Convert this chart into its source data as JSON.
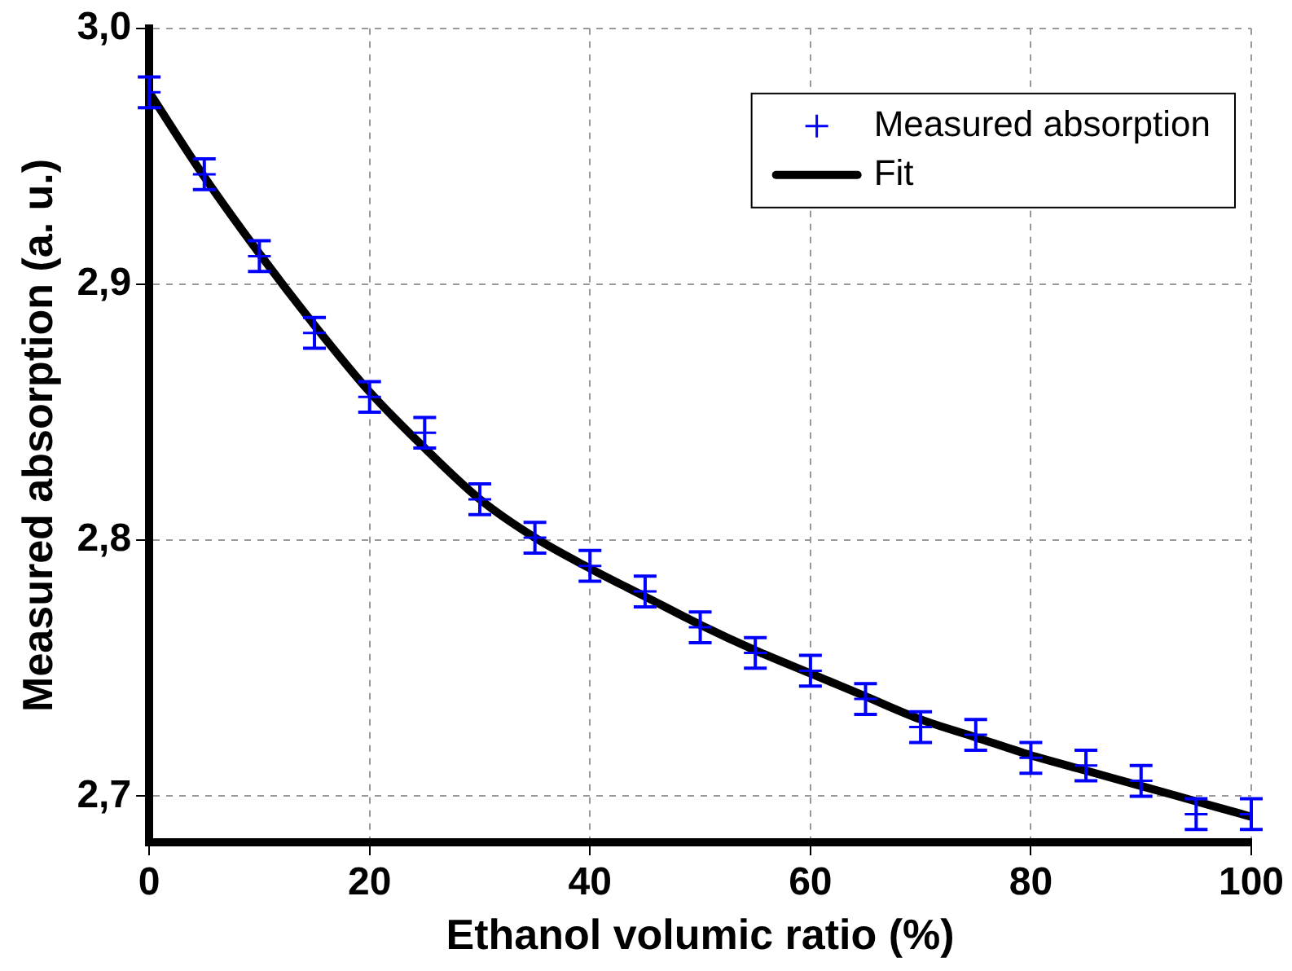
{
  "chart_data": {
    "type": "scatter",
    "xlabel": "Ethanol volumic ratio (%)",
    "ylabel": "Measured absorption (a. u.)",
    "xlim": [
      0,
      100
    ],
    "xticks": [
      0,
      20,
      40,
      60,
      80,
      100
    ],
    "ylim": [
      2.682,
      3.0
    ],
    "yticks": [
      {
        "value": 2.7,
        "label": "2,7"
      },
      {
        "value": 2.8,
        "label": "2,8"
      },
      {
        "value": 2.9,
        "label": "2,9"
      },
      {
        "value": 3.0,
        "label": "3,0"
      }
    ],
    "grid": true,
    "legend": "top right",
    "series": [
      {
        "name": "Measured absorption",
        "color": "#0000ff",
        "marker": "cross",
        "x": [
          0,
          5,
          10,
          15,
          20,
          25,
          30,
          35,
          40,
          45,
          50,
          55,
          60,
          65,
          70,
          75,
          80,
          85,
          90,
          95,
          100
        ],
        "values": [
          2.975,
          2.943,
          2.911,
          2.881,
          2.856,
          2.842,
          2.816,
          2.801,
          2.79,
          2.78,
          2.766,
          2.756,
          2.749,
          2.738,
          2.727,
          2.724,
          2.715,
          2.712,
          2.706,
          2.693,
          2.693
        ],
        "errors": [
          0.006,
          0.006,
          0.006,
          0.006,
          0.006,
          0.006,
          0.006,
          0.006,
          0.006,
          0.006,
          0.006,
          0.006,
          0.006,
          0.006,
          0.006,
          0.006,
          0.006,
          0.006,
          0.006,
          0.006,
          0.006
        ]
      },
      {
        "name": "Fit",
        "type": "line",
        "color": "#000000",
        "line_style": "solid",
        "x": [
          0,
          5,
          10,
          15,
          20,
          25,
          30,
          35,
          40,
          45,
          50,
          55,
          60,
          65,
          70,
          75,
          80,
          85,
          90,
          95,
          100
        ],
        "values": [
          2.975,
          2.942,
          2.912,
          2.884,
          2.858,
          2.836,
          2.816,
          2.801,
          2.789,
          2.778,
          2.767,
          2.757,
          2.748,
          2.739,
          2.73,
          2.723,
          2.716,
          2.71,
          2.704,
          2.698,
          2.692
        ]
      }
    ]
  }
}
